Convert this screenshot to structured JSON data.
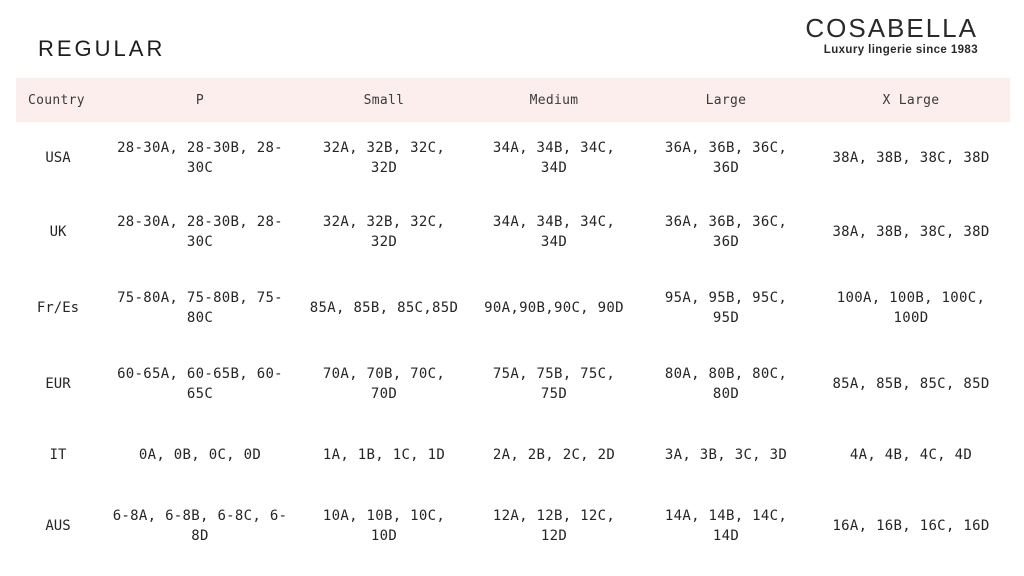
{
  "brand": {
    "name": "COSABELLA",
    "tagline": "Luxury lingerie since 1983"
  },
  "colors": {
    "page_bg": "#ffffff",
    "header_row_bg": "#fbeeec",
    "text": "#262626"
  },
  "chart_data": {
    "type": "table",
    "title": "REGULAR",
    "columns": [
      "Country",
      "P",
      "Small",
      "Medium",
      "Large",
      "X Large"
    ],
    "rows": [
      {
        "country": "USA",
        "cells": [
          "28-30A, 28-30B, 28-\n30C",
          "32A, 32B, 32C,\n32D",
          "34A, 34B, 34C,\n34D",
          "36A, 36B, 36C,\n36D",
          "38A, 38B, 38C, 38D"
        ]
      },
      {
        "country": "UK",
        "cells": [
          "28-30A, 28-30B, 28-\n30C",
          "32A, 32B, 32C,\n32D",
          "34A, 34B, 34C,\n34D",
          "36A, 36B, 36C,\n36D",
          "38A, 38B, 38C, 38D"
        ]
      },
      {
        "country": "Fr/Es",
        "cells": [
          "75-80A, 75-80B, 75-\n80C",
          "85A, 85B, 85C,85D",
          "90A,90B,90C, 90D",
          "95A, 95B, 95C,\n95D",
          "100A, 100B, 100C,\n100D"
        ]
      },
      {
        "country": "EUR",
        "cells": [
          "60-65A, 60-65B, 60-\n65C",
          "70A, 70B, 70C,\n70D",
          "75A, 75B, 75C,\n75D",
          "80A, 80B, 80C,\n80D",
          "85A, 85B, 85C, 85D"
        ]
      },
      {
        "country": "IT",
        "cells": [
          "0A, 0B, 0C, 0D",
          "1A, 1B, 1C, 1D",
          "2A, 2B, 2C, 2D",
          "3A, 3B, 3C, 3D",
          "4A, 4B, 4C, 4D"
        ]
      },
      {
        "country": "AUS",
        "cells": [
          "6-8A, 6-8B, 6-8C, 6-\n8D",
          "10A, 10B, 10C,\n10D",
          "12A, 12B, 12C,\n12D",
          "14A, 14B, 14C,\n14D",
          "16A, 16B, 16C, 16D"
        ]
      }
    ]
  }
}
